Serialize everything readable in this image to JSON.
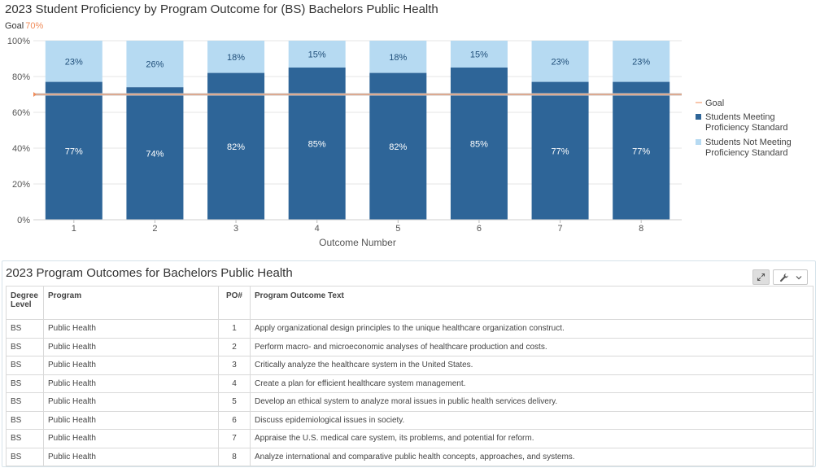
{
  "chart": {
    "title": "2023 Student Proficiency by Program Outcome for (BS) Bachelors Public Health",
    "goal_label": "Goal",
    "goal_value_label": "70%"
  },
  "chart_data": {
    "type": "bar",
    "stacked": true,
    "title": "2023 Student Proficiency by Program Outcome for (BS) Bachelors Public Health",
    "categories": [
      "1",
      "2",
      "3",
      "4",
      "5",
      "6",
      "7",
      "8"
    ],
    "series": [
      {
        "name": "Students Meeting Proficiency Standard",
        "values": [
          77,
          74,
          82,
          85,
          82,
          85,
          77,
          77
        ],
        "color": "#2e6598"
      },
      {
        "name": "Students Not Meeting Proficiency Standard",
        "values": [
          23,
          26,
          18,
          15,
          18,
          15,
          23,
          23
        ],
        "color": "#b6daf2"
      }
    ],
    "data_labels": {
      "meeting": [
        "77%",
        "74%",
        "82%",
        "85%",
        "82%",
        "85%",
        "77%",
        "77%"
      ],
      "not_meeting": [
        "23%",
        "26%",
        "18%",
        "15%",
        "18%",
        "15%",
        "23%",
        "23%"
      ]
    },
    "goal": {
      "name": "Goal",
      "value": 70,
      "color": "#f08c5a"
    },
    "xlabel": "Outcome Number",
    "ylabel": "",
    "ylim": [
      0,
      100
    ],
    "yticks": [
      "0%",
      "20%",
      "40%",
      "60%",
      "80%",
      "100%"
    ],
    "grid": true,
    "legend_position": "right",
    "legend": [
      "Goal",
      "Students Meeting Proficiency Standard",
      "Students Not Meeting Proficiency Standard"
    ]
  },
  "table_panel": {
    "title": "2023 Program Outcomes for Bachelors Public Health",
    "expand_icon": "expand-icon",
    "tools_icon": "wrench-icon",
    "dropdown_icon": "chevron-down-icon",
    "headers": {
      "degree_level": "Degree Level",
      "program": "Program",
      "po": "PO#",
      "outcome_text": "Program Outcome Text"
    },
    "rows": [
      {
        "degree": "BS",
        "program": "Public Health",
        "po": "1",
        "text": "Apply organizational design principles to the unique healthcare organization construct."
      },
      {
        "degree": "BS",
        "program": "Public Health",
        "po": "2",
        "text": "Perform macro- and microeconomic analyses of healthcare production and costs."
      },
      {
        "degree": "BS",
        "program": "Public Health",
        "po": "3",
        "text": "Critically analyze the healthcare system in the United States."
      },
      {
        "degree": "BS",
        "program": "Public Health",
        "po": "4",
        "text": "Create a plan for efficient healthcare system management."
      },
      {
        "degree": "BS",
        "program": "Public Health",
        "po": "5",
        "text": "Develop an ethical system to analyze moral issues in public health services delivery."
      },
      {
        "degree": "BS",
        "program": "Public Health",
        "po": "6",
        "text": "Discuss epidemiological issues in society."
      },
      {
        "degree": "BS",
        "program": "Public Health",
        "po": "7",
        "text": "Appraise the U.S. medical care system, its problems, and potential for reform."
      },
      {
        "degree": "BS",
        "program": "Public Health",
        "po": "8",
        "text": "Analyze international and comparative public health concepts, approaches, and systems."
      }
    ]
  }
}
